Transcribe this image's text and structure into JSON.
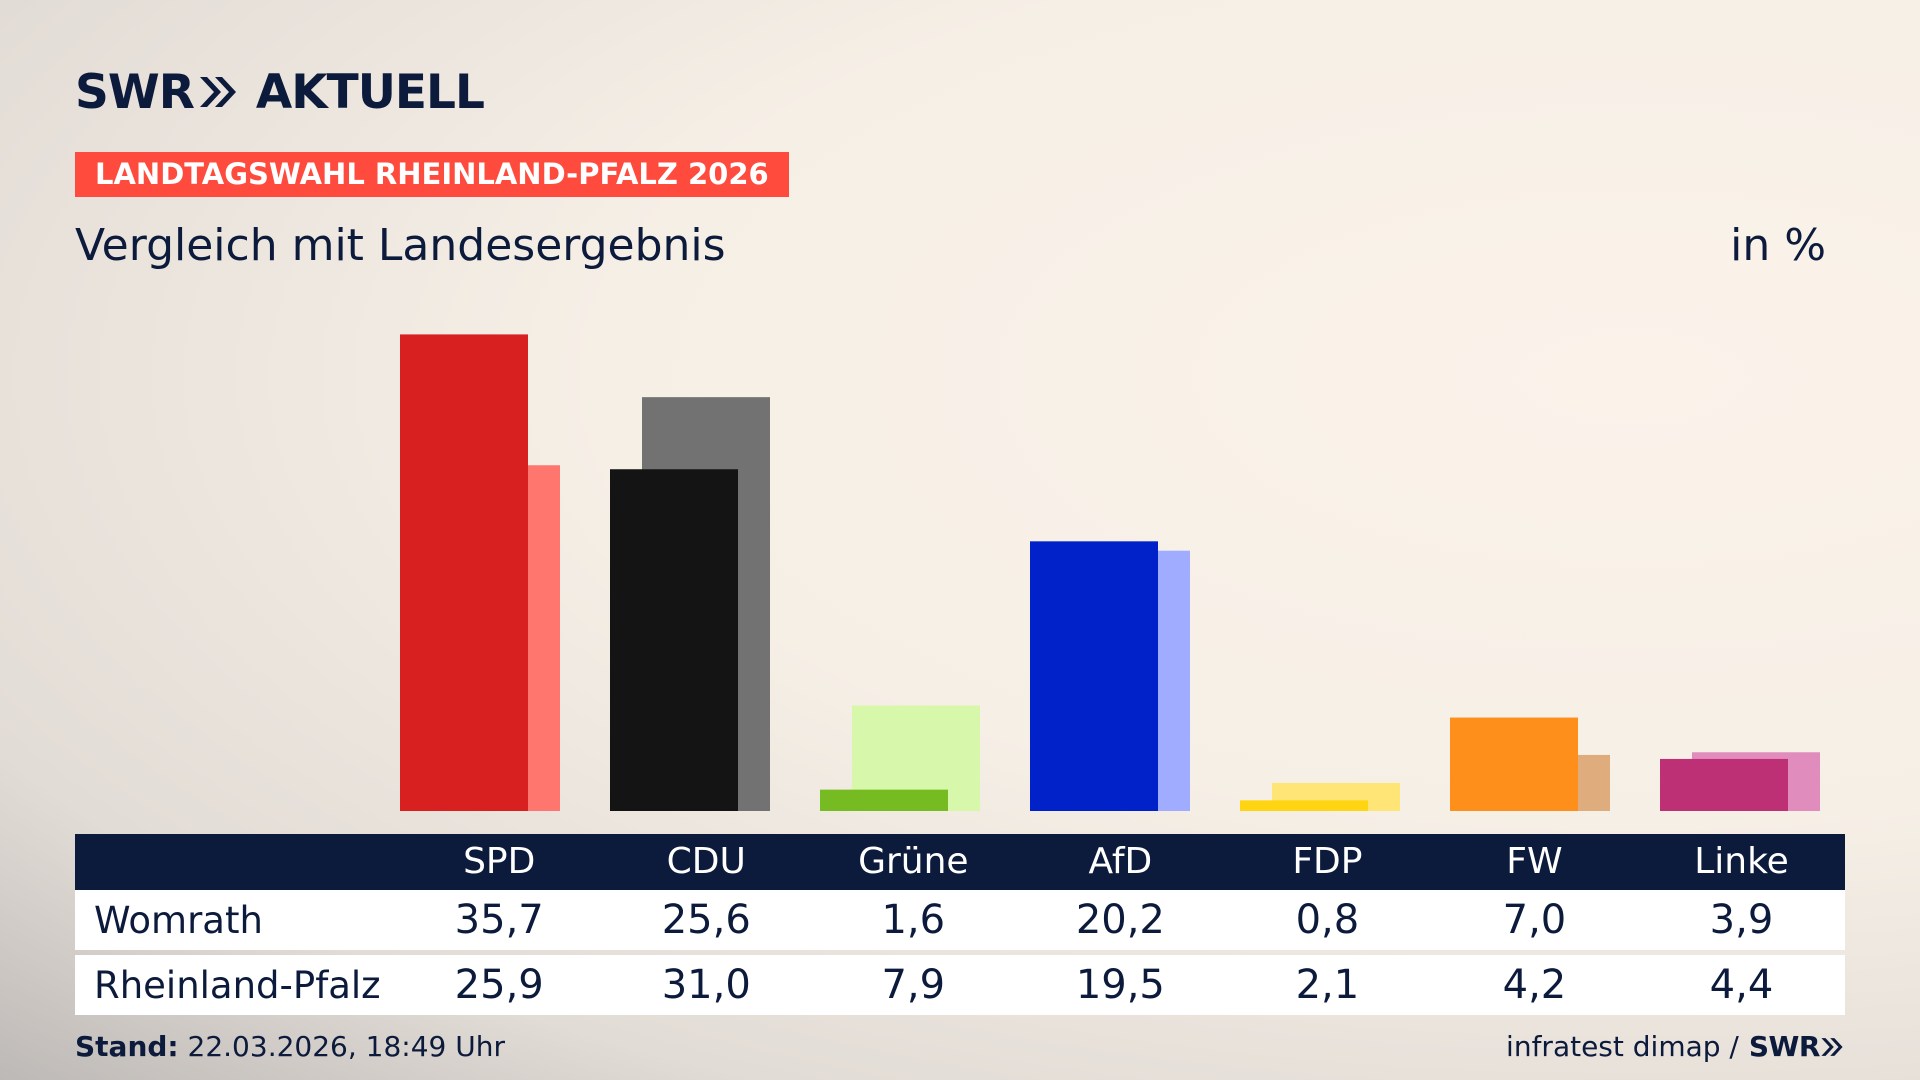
{
  "brand": {
    "swr": "SWR",
    "aktuell": "AKTUELL"
  },
  "tag": "LANDTAGSWAHL RHEINLAND-PFALZ 2026",
  "subtitle": "Vergleich mit Landesergebnis",
  "unit": "in %",
  "chart_data": {
    "type": "bar",
    "categories": [
      "SPD",
      "CDU",
      "Grüne",
      "AfD",
      "FDP",
      "FW",
      "Linke"
    ],
    "series": [
      {
        "name": "Womrath",
        "values": [
          35.7,
          25.6,
          1.6,
          20.2,
          0.8,
          7.0,
          3.9
        ],
        "colors": [
          "#d82020",
          "#141414",
          "#76bb21",
          "#0022c8",
          "#ffd513",
          "#fe8f1b",
          "#be3075"
        ]
      },
      {
        "name": "Rheinland-Pfalz",
        "values": [
          25.9,
          31.0,
          7.9,
          19.5,
          2.1,
          4.2,
          4.4
        ],
        "colors": [
          "#ff766e",
          "#737272",
          "#d7f7aa",
          "#a0acff",
          "#ffe575",
          "#dfac7e",
          "#e08cbd"
        ]
      }
    ],
    "ylim": [
      0,
      36
    ]
  },
  "table": {
    "headers": [
      "SPD",
      "CDU",
      "Grüne",
      "AfD",
      "FDP",
      "FW",
      "Linke"
    ],
    "rows": [
      {
        "label": "Womrath",
        "values": [
          "35,7",
          "25,6",
          "1,6",
          "20,2",
          "0,8",
          "7,0",
          "3,9"
        ]
      },
      {
        "label": "Rheinland-Pfalz",
        "values": [
          "25,9",
          "31,0",
          "7,9",
          "19,5",
          "2,1",
          "4,2",
          "4,4"
        ]
      }
    ]
  },
  "footer": {
    "stand_label": "Stand:",
    "stand_value": "22.03.2026, 18:49 Uhr",
    "source": "infratest dimap /",
    "source_brand": "SWR"
  }
}
